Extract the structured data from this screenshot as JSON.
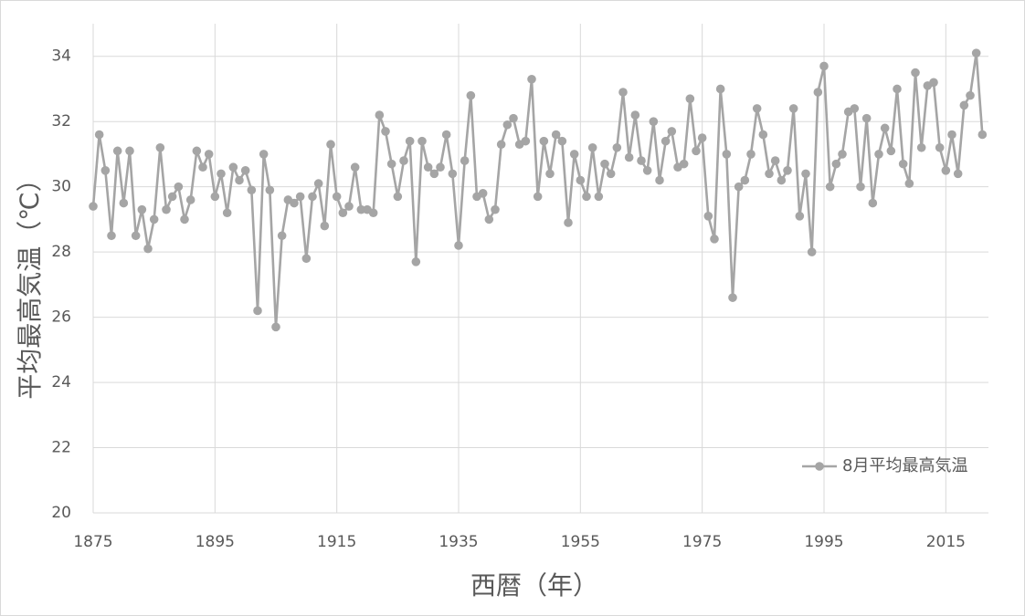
{
  "chart_data": {
    "type": "line",
    "x_label": "西暦（年）",
    "y_label": "平均最高気温（℃）",
    "x": [
      1875,
      1876,
      1877,
      1878,
      1879,
      1880,
      1881,
      1882,
      1883,
      1884,
      1885,
      1886,
      1887,
      1888,
      1889,
      1890,
      1891,
      1892,
      1893,
      1894,
      1895,
      1896,
      1897,
      1898,
      1899,
      1900,
      1901,
      1902,
      1903,
      1904,
      1905,
      1906,
      1907,
      1908,
      1909,
      1910,
      1911,
      1912,
      1913,
      1914,
      1915,
      1916,
      1917,
      1918,
      1919,
      1920,
      1921,
      1922,
      1923,
      1924,
      1925,
      1926,
      1927,
      1928,
      1929,
      1930,
      1931,
      1932,
      1933,
      1934,
      1935,
      1936,
      1937,
      1938,
      1939,
      1940,
      1941,
      1942,
      1943,
      1944,
      1945,
      1946,
      1947,
      1948,
      1949,
      1950,
      1951,
      1952,
      1953,
      1954,
      1955,
      1956,
      1957,
      1958,
      1959,
      1960,
      1961,
      1962,
      1963,
      1964,
      1965,
      1966,
      1967,
      1968,
      1969,
      1970,
      1971,
      1972,
      1973,
      1974,
      1975,
      1976,
      1977,
      1978,
      1979,
      1980,
      1981,
      1982,
      1983,
      1984,
      1985,
      1986,
      1987,
      1988,
      1989,
      1990,
      1991,
      1992,
      1993,
      1994,
      1995,
      1996,
      1997,
      1998,
      1999,
      2000,
      2001,
      2002,
      2003,
      2004,
      2005,
      2006,
      2007,
      2008,
      2009,
      2010,
      2011,
      2012,
      2013,
      2014,
      2015,
      2016,
      2017,
      2018,
      2019,
      2020,
      2021
    ],
    "series": [
      {
        "name": "8月平均最高気温",
        "color": "#a5a5a5",
        "values": [
          29.4,
          31.6,
          30.5,
          28.5,
          31.1,
          29.5,
          31.1,
          28.5,
          29.3,
          28.1,
          29.0,
          31.2,
          29.3,
          29.7,
          30.0,
          29.0,
          29.6,
          31.1,
          30.6,
          31.0,
          29.7,
          30.4,
          29.2,
          30.6,
          30.2,
          30.5,
          29.9,
          26.2,
          31.0,
          29.9,
          25.7,
          28.5,
          29.6,
          29.5,
          29.7,
          27.8,
          29.7,
          30.1,
          28.8,
          31.3,
          29.7,
          29.2,
          29.4,
          30.6,
          29.3,
          29.3,
          29.2,
          32.2,
          31.7,
          30.7,
          29.7,
          30.8,
          31.4,
          27.7,
          31.4,
          30.6,
          30.4,
          30.6,
          31.6,
          30.4,
          28.2,
          30.8,
          32.8,
          29.7,
          29.8,
          29.0,
          29.3,
          31.3,
          31.9,
          32.1,
          31.3,
          31.4,
          33.3,
          29.7,
          31.4,
          30.4,
          31.6,
          31.4,
          28.9,
          31.0,
          30.2,
          29.7,
          31.2,
          29.7,
          30.7,
          30.4,
          31.2,
          32.9,
          30.9,
          32.2,
          30.8,
          30.5,
          32.0,
          30.2,
          31.4,
          31.7,
          30.6,
          30.7,
          32.7,
          31.1,
          31.5,
          29.1,
          28.4,
          33.0,
          31.0,
          26.6,
          30.0,
          30.2,
          31.0,
          32.4,
          31.6,
          30.4,
          30.8,
          30.2,
          30.5,
          32.4,
          29.1,
          30.4,
          28.0,
          32.9,
          33.7,
          30.0,
          30.7,
          31.0,
          32.3,
          32.4,
          30.0,
          32.1,
          29.5,
          31.0,
          31.8,
          31.1,
          33.0,
          30.7,
          30.1,
          33.5,
          31.2,
          33.1,
          33.2,
          31.2,
          30.5,
          31.6,
          30.4,
          32.5,
          32.8,
          34.1,
          31.6
        ]
      }
    ],
    "xlim": [
      1875,
      2022
    ],
    "xticks": [
      1875,
      1895,
      1915,
      1935,
      1955,
      1975,
      1995,
      2015
    ],
    "ylim": [
      20,
      35
    ],
    "yticks": [
      20,
      22,
      24,
      26,
      28,
      30,
      32,
      34
    ],
    "grid": true,
    "legend": "lower right"
  }
}
